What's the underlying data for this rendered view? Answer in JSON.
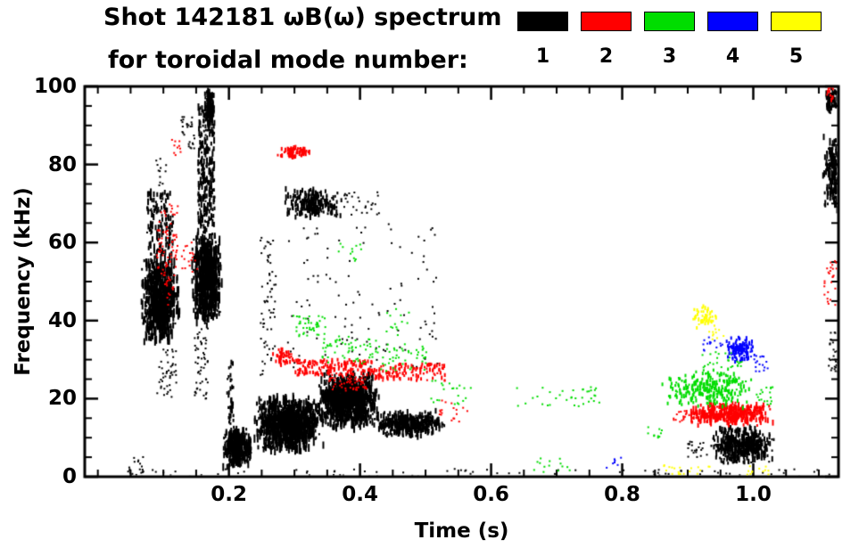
{
  "title": {
    "line1": "Shot 142181 ωB(ω) spectrum",
    "line2": "for toroidal mode number:"
  },
  "legend": {
    "modes": [
      {
        "label": "1",
        "color": "#000000"
      },
      {
        "label": "2",
        "color": "#ff0000"
      },
      {
        "label": "3",
        "color": "#00dd00"
      },
      {
        "label": "4",
        "color": "#0000ff"
      },
      {
        "label": "5",
        "color": "#ffff00"
      }
    ]
  },
  "chart_data": {
    "type": "scatter",
    "title": "Shot 142181 ωB(ω) spectrum for toroidal mode number: 1 2 3 4 5",
    "xlabel": "Time (s)",
    "ylabel": "Frequency (kHz)",
    "xlim": [
      -0.02,
      1.13
    ],
    "ylim": [
      0,
      100
    ],
    "xticks": {
      "values": [
        0.2,
        0.4,
        0.6,
        0.8,
        1.0
      ],
      "labels": [
        "0.2",
        "0.4",
        "0.6",
        "0.8",
        "1.0"
      ]
    },
    "yticks": {
      "values": [
        0,
        20,
        40,
        60,
        80,
        100
      ],
      "labels": [
        "0",
        "20",
        "40",
        "60",
        "80",
        "100"
      ]
    },
    "xminor": 0.05,
    "yminor": 5,
    "grid": false,
    "legend_position": "top-right",
    "series": [
      {
        "name": "n=1",
        "color": "#000000",
        "clusters": [
          {
            "t": [
              0.065,
              0.125
            ],
            "f": [
              33,
              57
            ],
            "n": 650,
            "s": 2,
            "ph": 10,
            "d": "c"
          },
          {
            "t": [
              0.075,
              0.115
            ],
            "f": [
              57,
              73
            ],
            "n": 130,
            "s": 2,
            "ph": 6,
            "d": "u"
          },
          {
            "t": [
              0.088,
              0.105
            ],
            "f": [
              74,
              83
            ],
            "n": 12,
            "s": 2,
            "d": "u"
          },
          {
            "t": [
              0.125,
              0.148
            ],
            "f": [
              84,
              93
            ],
            "n": 28,
            "s": 2,
            "d": "u"
          },
          {
            "t": [
              0.143,
              0.19
            ],
            "f": [
              38,
              64
            ],
            "n": 650,
            "s": 2,
            "ph": 10,
            "d": "c"
          },
          {
            "t": [
              0.153,
              0.178
            ],
            "f": [
              64,
              95
            ],
            "n": 240,
            "s": 2,
            "ph": 7,
            "d": "u"
          },
          {
            "t": [
              0.162,
              0.179
            ],
            "f": [
              90,
              100
            ],
            "n": 110,
            "s": 2,
            "ph": 6,
            "d": "c"
          },
          {
            "t": [
              0.19,
              0.235
            ],
            "f": [
              2,
              13
            ],
            "n": 380,
            "s": 2,
            "ph": 7,
            "d": "c"
          },
          {
            "t": [
              0.197,
              0.207
            ],
            "f": [
              13,
              30
            ],
            "n": 35,
            "s": 2,
            "ph": 4,
            "d": "u"
          },
          {
            "t": [
              0.235,
              0.345
            ],
            "f": [
              6,
              21
            ],
            "n": 950,
            "s": 2,
            "ph": 8,
            "d": "c"
          },
          {
            "t": [
              0.248,
              0.272
            ],
            "f": [
              25,
              62
            ],
            "n": 65,
            "s": 2,
            "d": "u"
          },
          {
            "t": [
              0.285,
              0.375
            ],
            "f": [
              66,
              74
            ],
            "n": 230,
            "s": 2,
            "ph": 5,
            "d": "c"
          },
          {
            "t": [
              0.375,
              0.43
            ],
            "f": [
              67,
              73
            ],
            "n": 28,
            "s": 2,
            "d": "u"
          },
          {
            "t": [
              0.335,
              0.43
            ],
            "f": [
              12,
              27
            ],
            "n": 950,
            "s": 2,
            "ph": 8,
            "d": "c"
          },
          {
            "t": [
              0.42,
              0.53
            ],
            "f": [
              10,
              17
            ],
            "n": 420,
            "s": 2,
            "ph": 5,
            "d": "c"
          },
          {
            "t": [
              0.29,
              0.52
            ],
            "f": [
              28,
              65
            ],
            "n": 110,
            "s": 2,
            "d": "u"
          },
          {
            "t": [
              0.09,
              0.12
            ],
            "f": [
              20,
              33
            ],
            "n": 45,
            "s": 2,
            "d": "u"
          },
          {
            "t": [
              0.147,
              0.168
            ],
            "f": [
              20,
              38
            ],
            "n": 55,
            "s": 2,
            "d": "u"
          },
          {
            "t": [
              0.9,
              0.932
            ],
            "f": [
              5,
              9
            ],
            "n": 22,
            "s": 2,
            "d": "u"
          },
          {
            "t": [
              0.93,
              1.035
            ],
            "f": [
              3,
              13
            ],
            "n": 430,
            "s": 2,
            "ph": 6,
            "d": "c"
          },
          {
            "t": [
              1.105,
              1.138
            ],
            "f": [
              68,
              88
            ],
            "n": 170,
            "s": 2,
            "ph": 7,
            "d": "c"
          },
          {
            "t": [
              1.11,
              1.13
            ],
            "f": [
              93,
              100
            ],
            "n": 70,
            "s": 2,
            "ph": 6,
            "d": "c"
          },
          {
            "t": [
              1.115,
              1.14
            ],
            "f": [
              26,
              37
            ],
            "n": 40,
            "s": 2,
            "d": "u"
          },
          {
            "t": [
              0.05,
              1.12
            ],
            "f": [
              0,
              2
            ],
            "n": 80,
            "s": 2,
            "d": "u"
          },
          {
            "t": [
              0.046,
              0.07
            ],
            "f": [
              0,
              6
            ],
            "n": 18,
            "s": 2,
            "d": "u"
          }
        ]
      },
      {
        "name": "n=2",
        "color": "#ff0000",
        "clusters": [
          {
            "t": [
              0.09,
              0.122
            ],
            "f": [
              52,
              70
            ],
            "n": 70,
            "s": 2,
            "d": "u"
          },
          {
            "t": [
              0.098,
              0.117
            ],
            "f": [
              44,
              52
            ],
            "n": 18,
            "s": 2,
            "d": "u"
          },
          {
            "t": [
              0.128,
              0.152
            ],
            "f": [
              52,
              61
            ],
            "n": 18,
            "s": 2,
            "d": "u"
          },
          {
            "t": [
              0.113,
              0.127
            ],
            "f": [
              82,
              87
            ],
            "n": 10,
            "s": 2,
            "d": "u"
          },
          {
            "t": [
              0.27,
              0.325
            ],
            "f": [
              81.5,
              85
            ],
            "n": 70,
            "s": 2,
            "ph": 4,
            "d": "c"
          },
          {
            "t": [
              0.262,
              0.302
            ],
            "f": [
              28.5,
              33
            ],
            "n": 55,
            "s": 2,
            "ph": 3,
            "d": "c"
          },
          {
            "t": [
              0.3,
              0.42
            ],
            "f": [
              26,
              30
            ],
            "n": 150,
            "s": 2,
            "ph": 3,
            "d": "u"
          },
          {
            "t": [
              0.42,
              0.53
            ],
            "f": [
              24.5,
              29
            ],
            "n": 120,
            "s": 2,
            "ph": 3,
            "d": "u"
          },
          {
            "t": [
              0.35,
              0.41
            ],
            "f": [
              22,
              26
            ],
            "n": 55,
            "s": 2,
            "d": "u"
          },
          {
            "t": [
              0.52,
              0.565
            ],
            "f": [
              14,
              20
            ],
            "n": 18,
            "s": 2,
            "d": "u"
          },
          {
            "t": [
              0.895,
              1.035
            ],
            "f": [
              13,
              19
            ],
            "n": 380,
            "s": 2,
            "ph": 5,
            "d": "c"
          },
          {
            "t": [
              0.878,
              0.9
            ],
            "f": [
              14,
              17
            ],
            "n": 14,
            "s": 2,
            "d": "u"
          },
          {
            "t": [
              1.108,
              1.127
            ],
            "f": [
              44,
              56
            ],
            "n": 26,
            "s": 2,
            "d": "u"
          },
          {
            "t": [
              1.112,
              1.122
            ],
            "f": [
              96,
              100
            ],
            "n": 12,
            "s": 2,
            "ph": 3,
            "d": "u"
          }
        ]
      },
      {
        "name": "n=3",
        "color": "#00dd00",
        "clusters": [
          {
            "t": [
              0.295,
              0.35
            ],
            "f": [
              36,
              42
            ],
            "n": 45,
            "s": 2,
            "d": "u"
          },
          {
            "t": [
              0.34,
              0.43
            ],
            "f": [
              29,
              36
            ],
            "n": 60,
            "s": 2,
            "d": "u"
          },
          {
            "t": [
              0.43,
              0.505
            ],
            "f": [
              27,
              34
            ],
            "n": 45,
            "s": 2,
            "d": "u"
          },
          {
            "t": [
              0.5,
              0.57
            ],
            "f": [
              18,
              25
            ],
            "n": 22,
            "s": 2,
            "d": "u"
          },
          {
            "t": [
              0.365,
              0.405
            ],
            "f": [
              54,
              60
            ],
            "n": 12,
            "s": 2,
            "d": "u"
          },
          {
            "t": [
              0.44,
              0.475
            ],
            "f": [
              36,
              43
            ],
            "n": 14,
            "s": 2,
            "d": "u"
          },
          {
            "t": [
              0.63,
              0.77
            ],
            "f": [
              18,
              23
            ],
            "n": 28,
            "s": 2,
            "d": "u"
          },
          {
            "t": [
              0.665,
              0.72
            ],
            "f": [
              1,
              5
            ],
            "n": 14,
            "s": 2,
            "d": "u"
          },
          {
            "t": [
              0.855,
              1.005
            ],
            "f": [
              17,
              28
            ],
            "n": 270,
            "s": 2,
            "ph": 3,
            "d": "c"
          },
          {
            "t": [
              0.92,
              0.985
            ],
            "f": [
              28,
              32
            ],
            "n": 30,
            "s": 2,
            "d": "u"
          },
          {
            "t": [
              1.0,
              1.03
            ],
            "f": [
              18,
              23
            ],
            "n": 18,
            "s": 2,
            "d": "u"
          },
          {
            "t": [
              0.83,
              0.862
            ],
            "f": [
              10,
              14
            ],
            "n": 10,
            "s": 2,
            "d": "u"
          },
          {
            "t": [
              0.735,
              0.76
            ],
            "f": [
              20,
              23
            ],
            "n": 8,
            "s": 2,
            "d": "u"
          }
        ]
      },
      {
        "name": "n=4",
        "color": "#0000ff",
        "clusters": [
          {
            "t": [
              0.955,
              1.005
            ],
            "f": [
              29,
              36
            ],
            "n": 120,
            "s": 2,
            "ph": 3,
            "d": "c"
          },
          {
            "t": [
              1.0,
              1.022
            ],
            "f": [
              27,
              31
            ],
            "n": 16,
            "s": 2,
            "d": "u"
          },
          {
            "t": [
              0.92,
              0.955
            ],
            "f": [
              32,
              36
            ],
            "n": 14,
            "s": 2,
            "d": "u"
          },
          {
            "t": [
              0.775,
              0.8
            ],
            "f": [
              2,
              5
            ],
            "n": 7,
            "s": 2,
            "d": "u"
          }
        ]
      },
      {
        "name": "n=5",
        "color": "#ffff00",
        "clusters": [
          {
            "t": [
              0.905,
              0.945
            ],
            "f": [
              38,
              44
            ],
            "n": 45,
            "s": 2,
            "ph": 3,
            "d": "c"
          },
          {
            "t": [
              0.93,
              0.955
            ],
            "f": [
              35,
              38
            ],
            "n": 10,
            "s": 2,
            "d": "u"
          },
          {
            "t": [
              0.862,
              0.935
            ],
            "f": [
              0.5,
              3
            ],
            "n": 20,
            "s": 2,
            "d": "u"
          },
          {
            "t": [
              0.985,
              1.025
            ],
            "f": [
              0.5,
              3
            ],
            "n": 12,
            "s": 2,
            "d": "u"
          }
        ]
      }
    ]
  }
}
